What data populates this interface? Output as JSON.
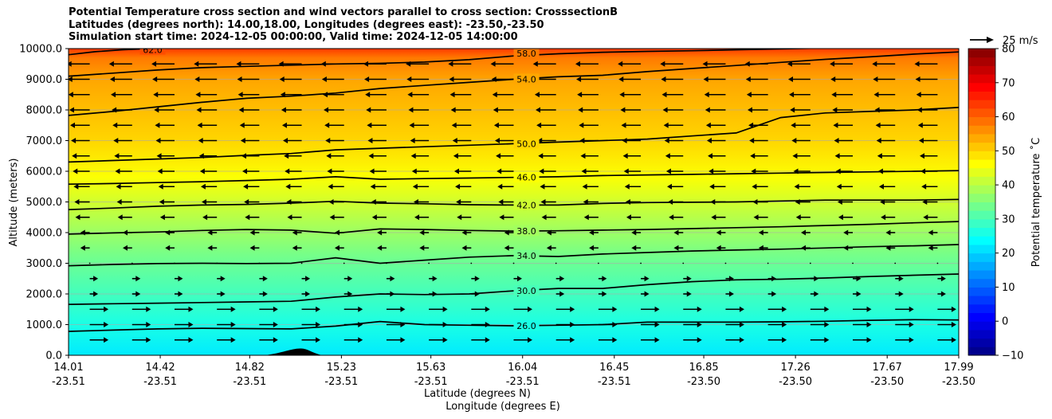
{
  "title_lines": [
    "Potential Temperature cross section and wind vectors parallel to cross section: CrosssectionB",
    "Latitudes (degrees north): 14.00,18.00, Longitudes (degrees east): -23.50,-23.50",
    "Simulation start time: 2024-12-05 00:00:00, Valid time: 2024-12-05 14:00:00"
  ],
  "chart_data": {
    "type": "heatmap",
    "subtype": "filled contour cross-section with contour lines and wind vectors",
    "ylabel": "Altitude (meters)",
    "xlabel_lat": "Latitude (degrees N)",
    "xlabel_lon": "Longitude (degrees E)",
    "ylim": [
      0,
      10000
    ],
    "y_ticks": [
      "0.0",
      "1000.0",
      "2000.0",
      "3000.0",
      "4000.0",
      "5000.0",
      "6000.0",
      "7000.0",
      "8000.0",
      "9000.0",
      "10000.0"
    ],
    "x_ticks_lat": [
      "14.01",
      "14.42",
      "14.82",
      "15.23",
      "15.63",
      "16.04",
      "16.45",
      "16.85",
      "17.26",
      "17.67",
      "17.99"
    ],
    "x_ticks_lon": [
      "-23.51",
      "-23.51",
      "-23.51",
      "-23.51",
      "-23.51",
      "-23.51",
      "-23.51",
      "-23.50",
      "-23.50",
      "-23.50",
      "-23.50"
    ],
    "grid": "horizontal",
    "colorbar": {
      "label": "Potential temperature ˚C",
      "range": [
        -10,
        80
      ],
      "ticks": [
        "−10",
        "0",
        "10",
        "20",
        "30",
        "40",
        "50",
        "60",
        "70",
        "80"
      ],
      "colormap": "jet"
    },
    "contour_labels": [
      "26.0",
      "30.0",
      "34.0",
      "38.0",
      "42.0",
      "46.0",
      "50.0",
      "54.0",
      "58.0",
      "62.0"
    ],
    "contours": [
      {
        "level": 26,
        "x": [
          0,
          0.05,
          0.1,
          0.15,
          0.2,
          0.25,
          0.3,
          0.35,
          0.4,
          0.45,
          0.5,
          0.55,
          0.6,
          0.65,
          0.7,
          0.75,
          0.8,
          0.85,
          0.9,
          0.95,
          1
        ],
        "y": [
          780,
          820,
          860,
          880,
          870,
          860,
          950,
          1100,
          1000,
          980,
          960,
          980,
          1000,
          1080,
          1080,
          1080,
          1090,
          1110,
          1140,
          1160,
          1150
        ]
      },
      {
        "level": 30,
        "x": [
          0,
          0.05,
          0.1,
          0.15,
          0.2,
          0.25,
          0.3,
          0.35,
          0.4,
          0.45,
          0.5,
          0.55,
          0.6,
          0.65,
          0.7,
          0.75,
          0.8,
          0.85,
          0.9,
          0.95,
          1
        ],
        "y": [
          1660,
          1680,
          1700,
          1720,
          1740,
          1760,
          1900,
          2000,
          1980,
          2000,
          2100,
          2180,
          2180,
          2300,
          2400,
          2460,
          2480,
          2520,
          2570,
          2610,
          2650
        ]
      },
      {
        "level": 34,
        "x": [
          0,
          0.05,
          0.1,
          0.15,
          0.2,
          0.25,
          0.3,
          0.35,
          0.4,
          0.45,
          0.5,
          0.55,
          0.6,
          0.65,
          0.7,
          0.75,
          0.8,
          0.85,
          0.9,
          0.95,
          1
        ],
        "y": [
          2920,
          2960,
          2990,
          3000,
          2990,
          3000,
          3180,
          3000,
          3100,
          3200,
          3250,
          3220,
          3300,
          3350,
          3400,
          3430,
          3460,
          3500,
          3540,
          3570,
          3610
        ]
      },
      {
        "level": 38,
        "x": [
          0,
          0.05,
          0.1,
          0.15,
          0.2,
          0.25,
          0.3,
          0.35,
          0.4,
          0.45,
          0.5,
          0.55,
          0.6,
          0.65,
          0.7,
          0.75,
          0.8,
          0.85,
          0.9,
          0.95,
          1
        ],
        "y": [
          3950,
          3990,
          4020,
          4070,
          4100,
          4080,
          3980,
          4120,
          4100,
          4070,
          4050,
          4060,
          4080,
          4100,
          4130,
          4160,
          4190,
          4230,
          4270,
          4320,
          4360
        ]
      },
      {
        "level": 42,
        "x": [
          0,
          0.05,
          0.1,
          0.15,
          0.2,
          0.25,
          0.3,
          0.35,
          0.4,
          0.45,
          0.5,
          0.55,
          0.6,
          0.65,
          0.7,
          0.75,
          0.8,
          0.85,
          0.9,
          0.95,
          1
        ],
        "y": [
          4750,
          4800,
          4860,
          4900,
          4920,
          4960,
          5020,
          4960,
          4940,
          4910,
          4900,
          4900,
          4950,
          4980,
          4990,
          5000,
          5030,
          5060,
          5060,
          5060,
          5080
        ]
      },
      {
        "level": 46,
        "x": [
          0,
          0.05,
          0.1,
          0.15,
          0.2,
          0.25,
          0.3,
          0.35,
          0.4,
          0.45,
          0.5,
          0.55,
          0.6,
          0.65,
          0.7,
          0.75,
          0.8,
          0.85,
          0.9,
          0.95,
          1
        ],
        "y": [
          5580,
          5600,
          5630,
          5660,
          5700,
          5740,
          5820,
          5740,
          5760,
          5780,
          5800,
          5820,
          5860,
          5880,
          5900,
          5920,
          5940,
          5960,
          5980,
          6000,
          6020
        ]
      },
      {
        "level": 50,
        "x": [
          0,
          0.05,
          0.1,
          0.15,
          0.2,
          0.25,
          0.3,
          0.35,
          0.4,
          0.45,
          0.5,
          0.55,
          0.6,
          0.65,
          0.7,
          0.75,
          0.8,
          0.85,
          0.9,
          0.95,
          1
        ],
        "y": [
          6300,
          6350,
          6400,
          6450,
          6520,
          6580,
          6700,
          6750,
          6800,
          6850,
          6900,
          6950,
          7000,
          7050,
          7150,
          7250,
          7750,
          7900,
          7950,
          8000,
          8080
        ]
      },
      {
        "level": 54,
        "x": [
          0,
          0.05,
          0.1,
          0.15,
          0.2,
          0.25,
          0.3,
          0.35,
          0.4,
          0.45,
          0.5,
          0.55,
          0.6,
          0.65,
          0.7,
          0.75,
          0.8,
          0.85,
          0.9,
          0.95,
          1
        ],
        "y": [
          7820,
          7950,
          8100,
          8250,
          8380,
          8450,
          8550,
          8700,
          8800,
          8900,
          9000,
          9080,
          9130,
          9250,
          9350,
          9450,
          9550,
          9650,
          9730,
          9820,
          9890
        ]
      },
      {
        "level": 58,
        "x": [
          0,
          0.05,
          0.1,
          0.15,
          0.2,
          0.25,
          0.3,
          0.35,
          0.4,
          0.45,
          0.5,
          0.55,
          0.6,
          0.65,
          0.7,
          0.75,
          0.8,
          0.85,
          0.9,
          0.95,
          1
        ],
        "y": [
          9100,
          9200,
          9300,
          9380,
          9420,
          9460,
          9500,
          9520,
          9560,
          9640,
          9760,
          9830,
          9880,
          9910,
          9930,
          9960,
          9990,
          10020,
          10040,
          10060,
          10080
        ]
      },
      {
        "level": 62,
        "x": [
          0,
          0.03,
          0.06,
          0.09
        ],
        "y": [
          9800,
          9900,
          9960,
          10000
        ]
      }
    ],
    "wind_reference_label": "25 m/s",
    "terrain_peak_altitude": 220
  }
}
